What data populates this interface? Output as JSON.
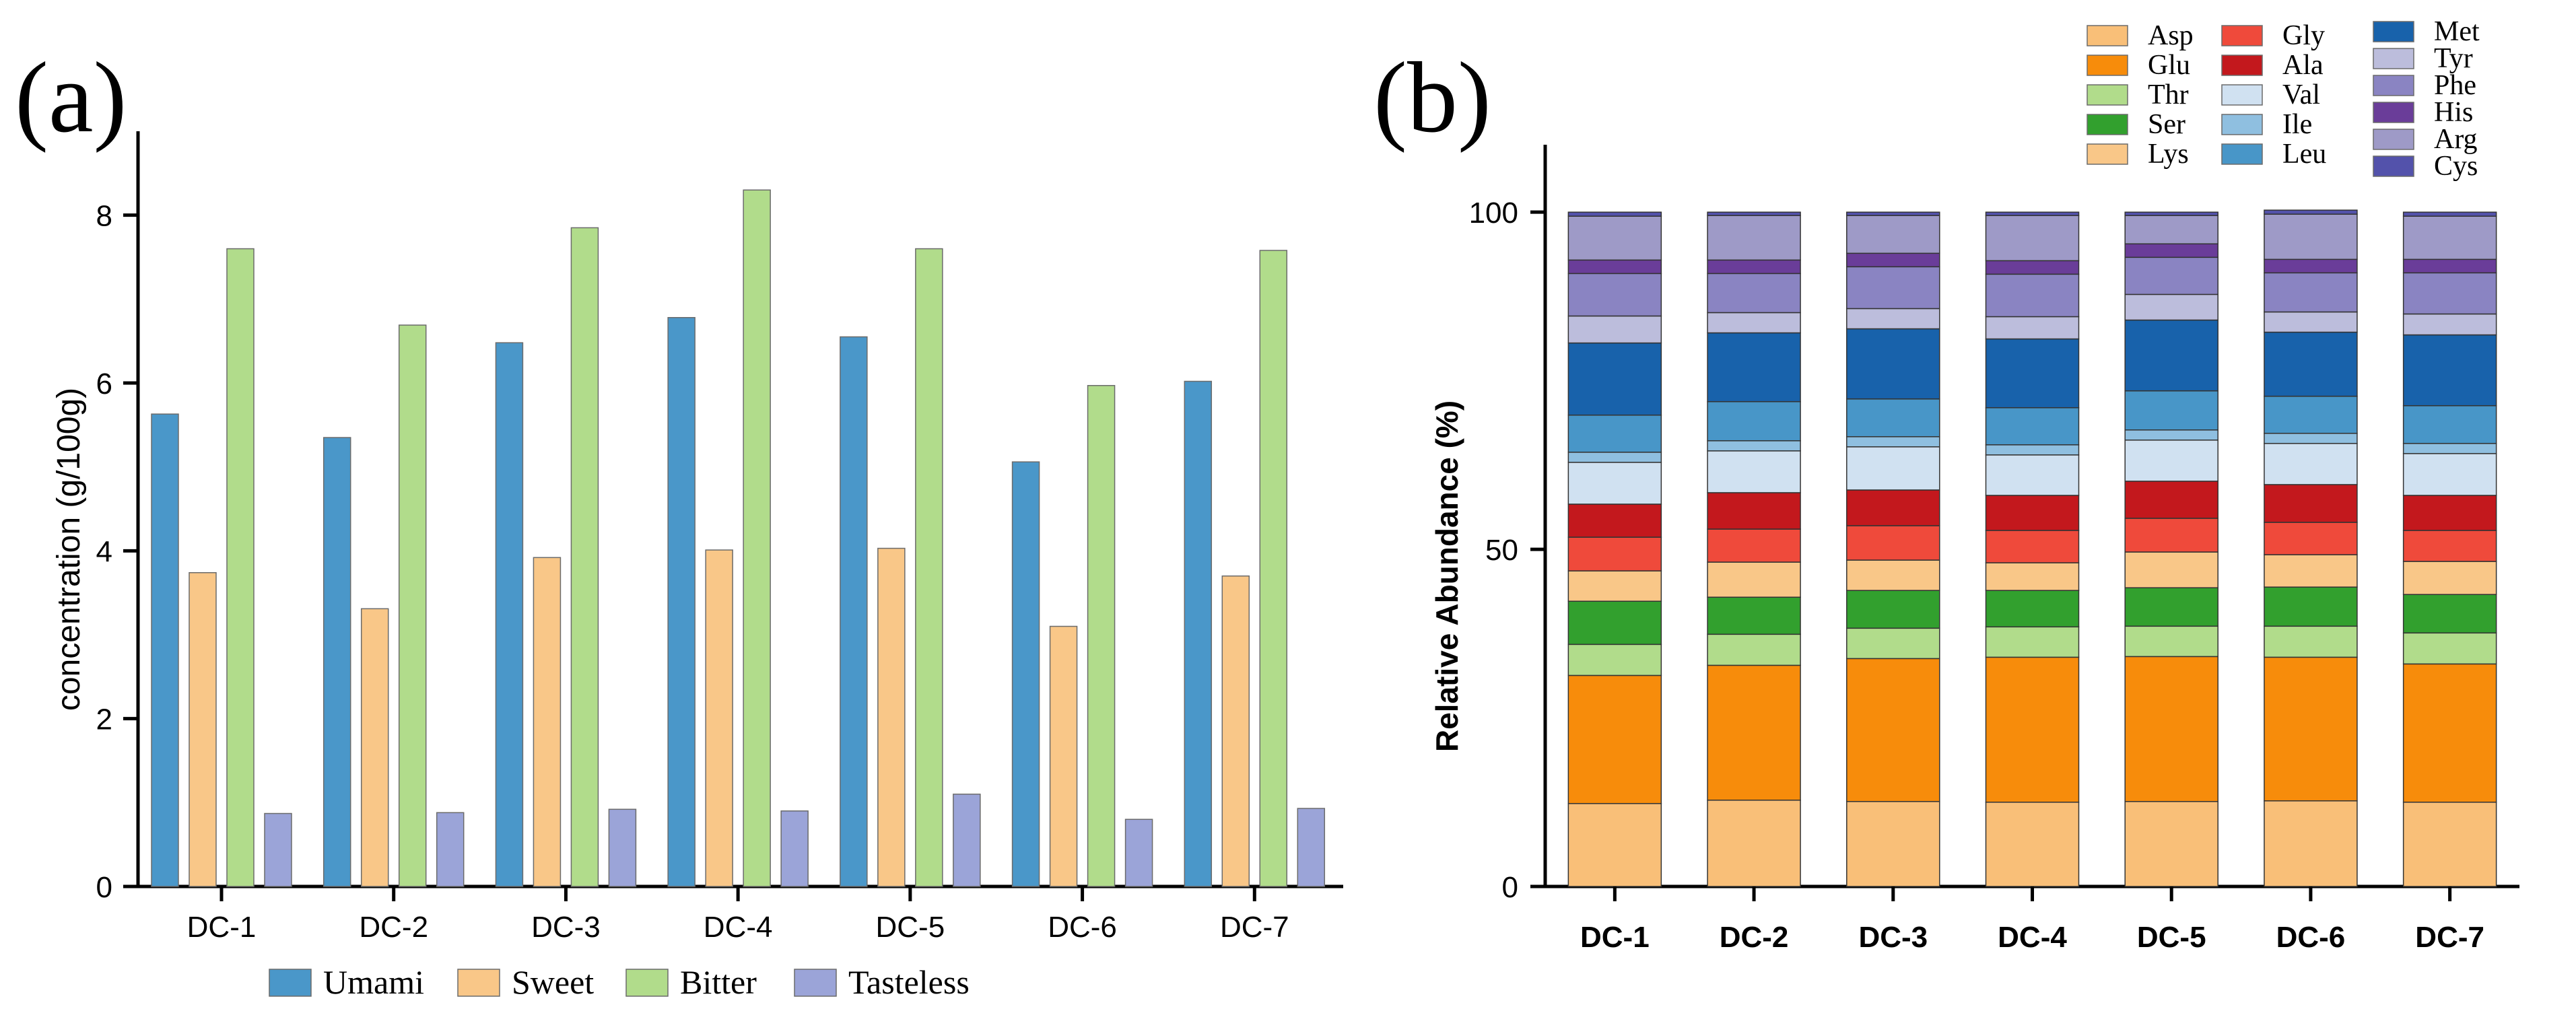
{
  "panel_a_label": "(a)",
  "panel_b_label": "(b)",
  "chart_data": [
    {
      "type": "bar",
      "panel": "(a)",
      "title": "",
      "xlabel": "",
      "ylabel": "concentration (g/100g)",
      "ylim": [
        0,
        9
      ],
      "yticks": [
        0,
        2,
        4,
        6,
        8
      ],
      "categories": [
        "DC-1",
        "DC-2",
        "DC-3",
        "DC-4",
        "DC-5",
        "DC-6",
        "DC-7"
      ],
      "legend_position": "bottom",
      "series": [
        {
          "name": "Umami",
          "color": "#4a97c9",
          "values": [
            5.63,
            5.35,
            6.48,
            6.78,
            6.55,
            5.06,
            6.02
          ]
        },
        {
          "name": "Sweet",
          "color": "#f9c788",
          "values": [
            3.74,
            3.31,
            3.92,
            4.01,
            4.03,
            3.1,
            3.7
          ]
        },
        {
          "name": "Bitter",
          "color": "#b1dc8b",
          "values": [
            7.6,
            6.69,
            7.85,
            8.3,
            7.6,
            5.97,
            7.58
          ]
        },
        {
          "name": "Tasteless",
          "color": "#9ba4d8",
          "values": [
            0.87,
            0.88,
            0.92,
            0.9,
            1.1,
            0.8,
            0.93
          ]
        }
      ]
    },
    {
      "type": "bar",
      "stacked": true,
      "panel": "(b)",
      "title": "",
      "xlabel": "",
      "ylabel": "Relative Abundance (%)",
      "ylim": [
        0,
        110
      ],
      "yticks": [
        0,
        50,
        100
      ],
      "categories": [
        "DC-1",
        "DC-2",
        "DC-3",
        "DC-4",
        "DC-5",
        "DC-6",
        "DC-7"
      ],
      "legend_position": "top-right",
      "series": [
        {
          "name": "Asp",
          "color": "#f9bf78",
          "values": [
            12.3,
            12.8,
            12.6,
            12.5,
            12.6,
            12.7,
            12.5
          ]
        },
        {
          "name": "Glu",
          "color": "#f78c0b",
          "values": [
            19.0,
            20.0,
            21.2,
            21.5,
            21.5,
            21.3,
            20.5
          ]
        },
        {
          "name": "Thr",
          "color": "#b1dc8b",
          "values": [
            4.6,
            4.6,
            4.5,
            4.5,
            4.5,
            4.6,
            4.6
          ]
        },
        {
          "name": "Ser",
          "color": "#32a02e",
          "values": [
            6.4,
            5.5,
            5.6,
            5.4,
            5.7,
            5.8,
            5.7
          ]
        },
        {
          "name": "Lys",
          "color": "#f9c788",
          "values": [
            4.5,
            5.2,
            4.5,
            4.1,
            5.3,
            4.8,
            4.9
          ]
        },
        {
          "name": "Gly",
          "color": "#ef4a3b",
          "values": [
            5.0,
            4.9,
            5.1,
            4.8,
            5.0,
            4.8,
            4.6
          ]
        },
        {
          "name": "Ala",
          "color": "#c3181d",
          "values": [
            4.9,
            5.4,
            5.3,
            5.2,
            5.5,
            5.6,
            5.2
          ]
        },
        {
          "name": "Val",
          "color": "#d0e1f1",
          "values": [
            6.2,
            6.2,
            6.4,
            6.0,
            6.1,
            6.1,
            6.2
          ]
        },
        {
          "name": "Ile",
          "color": "#8fbfe0",
          "values": [
            1.5,
            1.5,
            1.5,
            1.5,
            1.5,
            1.5,
            1.5
          ]
        },
        {
          "name": "Leu",
          "color": "#4896c8",
          "values": [
            5.5,
            5.8,
            5.6,
            5.5,
            5.8,
            5.5,
            5.6
          ]
        },
        {
          "name": "Met",
          "color": "#1862ab",
          "values": [
            10.7,
            10.2,
            10.4,
            10.2,
            10.5,
            9.5,
            10.5
          ]
        },
        {
          "name": "Tyr",
          "color": "#bcbddc",
          "values": [
            4.0,
            3.0,
            3.0,
            3.3,
            3.8,
            3.0,
            3.1
          ]
        },
        {
          "name": "Phe",
          "color": "#8a84c2",
          "values": [
            6.3,
            5.8,
            6.2,
            6.3,
            5.5,
            5.8,
            6.1
          ]
        },
        {
          "name": "His",
          "color": "#6a3d99",
          "values": [
            2.0,
            2.0,
            2.0,
            2.0,
            2.0,
            2.0,
            2.0
          ]
        },
        {
          "name": "Arg",
          "color": "#9e9ac7",
          "values": [
            6.5,
            6.6,
            5.6,
            6.7,
            4.2,
            6.7,
            6.4
          ]
        },
        {
          "name": "Cys",
          "color": "#5352ab",
          "values": [
            0.6,
            0.5,
            0.5,
            0.5,
            0.5,
            0.6,
            0.6
          ]
        }
      ]
    }
  ]
}
